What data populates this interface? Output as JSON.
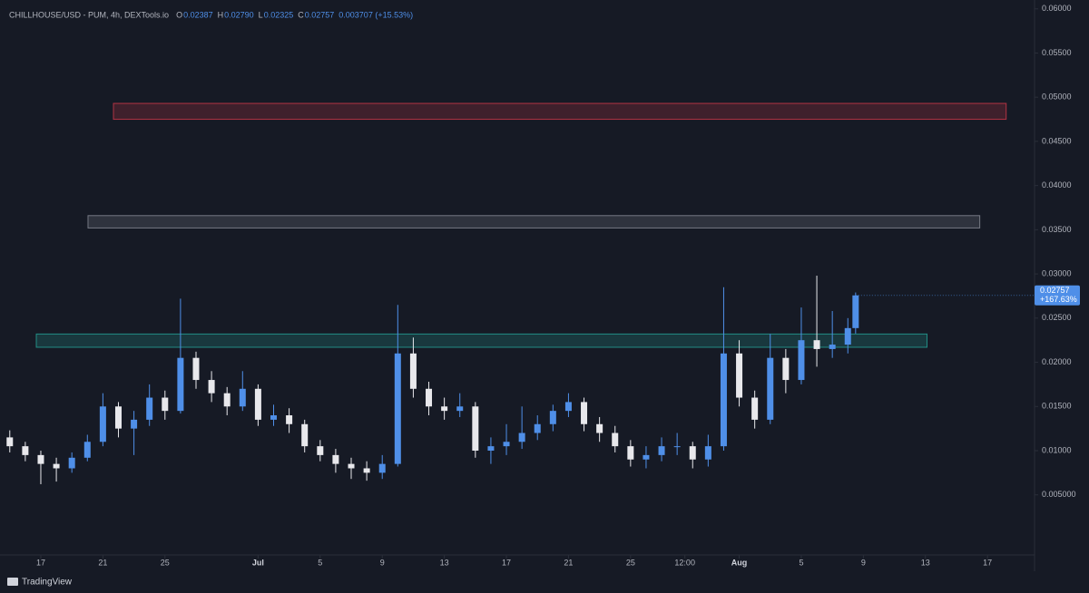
{
  "chart_data": {
    "type": "candlestick",
    "header": {
      "symbol": "CHILLHOUSE/USD - PUM, 4h, DEXTools.io",
      "o_key": "O",
      "o": "0.02387",
      "h_key": "H",
      "h": "0.02790",
      "l_key": "L",
      "l": "0.02325",
      "c_key": "C",
      "c": "0.02757",
      "change": "0.003707 (+15.53%)"
    },
    "x": [
      -2,
      -1,
      0,
      1,
      2,
      3,
      4,
      5,
      6,
      7,
      8,
      9,
      10,
      11,
      12,
      13,
      14,
      15,
      16,
      17,
      18,
      19,
      20,
      21,
      22,
      23,
      24,
      25,
      26,
      27,
      28,
      29,
      30,
      31,
      32,
      33,
      34,
      35,
      36,
      37,
      38,
      39,
      40,
      41,
      42,
      43,
      44,
      45,
      46,
      47,
      48,
      49,
      50,
      51,
      52,
      52.5
    ],
    "open": [
      0.0115,
      0.0105,
      0.0095,
      0.0085,
      0.008,
      0.0092,
      0.011,
      0.015,
      0.0125,
      0.0135,
      0.016,
      0.0145,
      0.0205,
      0.018,
      0.0165,
      0.015,
      0.017,
      0.0135,
      0.014,
      0.013,
      0.0105,
      0.0095,
      0.0085,
      0.008,
      0.0075,
      0.0085,
      0.021,
      0.017,
      0.015,
      0.0145,
      0.015,
      0.01,
      0.0105,
      0.011,
      0.012,
      0.013,
      0.0145,
      0.0155,
      0.013,
      0.012,
      0.0105,
      0.009,
      0.0095,
      0.0105,
      0.0105,
      0.009,
      0.0105,
      0.021,
      0.016,
      0.0135,
      0.0205,
      0.018,
      0.0225,
      0.0215,
      0.022,
      0.02387
    ],
    "high": [
      0.0123,
      0.011,
      0.01,
      0.0092,
      0.0098,
      0.0118,
      0.0165,
      0.0155,
      0.0145,
      0.0175,
      0.0168,
      0.0272,
      0.0212,
      0.019,
      0.0172,
      0.019,
      0.0175,
      0.0152,
      0.0148,
      0.0135,
      0.0112,
      0.0102,
      0.0092,
      0.0088,
      0.0095,
      0.0265,
      0.0228,
      0.0178,
      0.016,
      0.0165,
      0.0155,
      0.0115,
      0.013,
      0.015,
      0.014,
      0.0152,
      0.0165,
      0.016,
      0.0138,
      0.0128,
      0.0112,
      0.0105,
      0.0115,
      0.012,
      0.011,
      0.0118,
      0.0285,
      0.0225,
      0.0168,
      0.0232,
      0.0215,
      0.0262,
      0.0298,
      0.0258,
      0.025,
      0.0279
    ],
    "low": [
      0.0098,
      0.0088,
      0.0062,
      0.0065,
      0.0075,
      0.0088,
      0.0105,
      0.0115,
      0.0095,
      0.0128,
      0.0135,
      0.0142,
      0.017,
      0.0155,
      0.014,
      0.0145,
      0.0128,
      0.0128,
      0.012,
      0.0098,
      0.0088,
      0.0075,
      0.0068,
      0.0066,
      0.0068,
      0.0082,
      0.016,
      0.014,
      0.0135,
      0.0138,
      0.0092,
      0.0085,
      0.0095,
      0.0102,
      0.0112,
      0.0122,
      0.0138,
      0.0122,
      0.011,
      0.0098,
      0.0082,
      0.008,
      0.0088,
      0.0095,
      0.008,
      0.0082,
      0.01,
      0.015,
      0.0125,
      0.013,
      0.0165,
      0.0175,
      0.0195,
      0.0205,
      0.021,
      0.02325
    ],
    "close": [
      0.0105,
      0.0095,
      0.0085,
      0.008,
      0.0092,
      0.011,
      0.015,
      0.0125,
      0.0135,
      0.016,
      0.0145,
      0.0205,
      0.018,
      0.0165,
      0.015,
      0.017,
      0.0135,
      0.014,
      0.013,
      0.0105,
      0.0095,
      0.0085,
      0.008,
      0.0075,
      0.0085,
      0.021,
      0.017,
      0.015,
      0.0145,
      0.015,
      0.01,
      0.0105,
      0.011,
      0.012,
      0.013,
      0.0145,
      0.0155,
      0.013,
      0.012,
      0.0105,
      0.009,
      0.0095,
      0.0105,
      0.0105,
      0.009,
      0.0105,
      0.021,
      0.016,
      0.0135,
      0.0205,
      0.018,
      0.0225,
      0.0215,
      0.022,
      0.02387,
      0.02757
    ],
    "up_color": "#4f8fe8",
    "down_color": "#e8e8ec",
    "zones": [
      {
        "x": [
          4.68,
          62.2
        ],
        "y": [
          0.0475,
          0.0493
        ],
        "color": "#d2384a"
      },
      {
        "x": [
          3.04,
          60.5
        ],
        "y": [
          0.0352,
          0.0366
        ],
        "color": "#8a8d99"
      },
      {
        "x": [
          -0.29,
          57.1
        ],
        "y": [
          0.0217,
          0.0232
        ],
        "color": "#26a69a"
      }
    ],
    "price_tag": {
      "value": 0.02757,
      "lines": [
        "0.02757",
        "+167.63%"
      ]
    },
    "xlim": [
      -2.63,
      64.03
    ],
    "ylim": [
      -0.0018,
      0.061
    ],
    "xticks": [
      {
        "value": 0,
        "label": "17"
      },
      {
        "value": 4,
        "label": "21"
      },
      {
        "value": 8,
        "label": "25"
      },
      {
        "value": 14,
        "label": "Jul"
      },
      {
        "value": 18,
        "label": "5"
      },
      {
        "value": 22,
        "label": "9"
      },
      {
        "value": 26,
        "label": "13"
      },
      {
        "value": 30,
        "label": "17"
      },
      {
        "value": 34,
        "label": "21"
      },
      {
        "value": 38,
        "label": "25"
      },
      {
        "value": 41.5,
        "label": "12:00"
      },
      {
        "value": 45,
        "label": "Aug"
      },
      {
        "value": 49,
        "label": "5"
      },
      {
        "value": 53,
        "label": "9"
      },
      {
        "value": 57,
        "label": "13"
      },
      {
        "value": 61,
        "label": "17"
      }
    ],
    "yticks": [
      {
        "value": 0.06,
        "label": "0.06000"
      },
      {
        "value": 0.055,
        "label": "0.05500"
      },
      {
        "value": 0.05,
        "label": "0.05000"
      },
      {
        "value": 0.045,
        "label": "0.04500"
      },
      {
        "value": 0.04,
        "label": "0.04000"
      },
      {
        "value": 0.035,
        "label": "0.03500"
      },
      {
        "value": 0.03,
        "label": "0.03000"
      },
      {
        "value": 0.025,
        "label": "0.02500"
      },
      {
        "value": 0.02,
        "label": "0.02000"
      },
      {
        "value": 0.015,
        "label": "0.01500"
      },
      {
        "value": 0.01,
        "label": "0.01000"
      },
      {
        "value": 0.005,
        "label": "0.005000"
      }
    ],
    "brand": "TradingView"
  }
}
